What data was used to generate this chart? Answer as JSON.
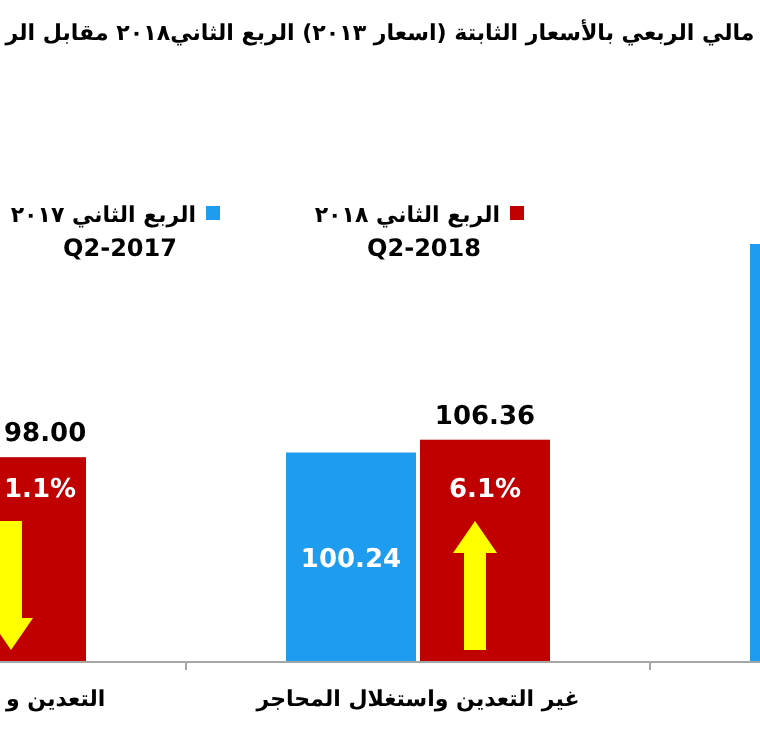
{
  "chart_data": {
    "type": "bar",
    "title": "مالي الربعي بالأسعار الثابتة (اسعار ٢٠١٣) الربع الثاني٢٠١٨ مقابل الر",
    "categories": [
      "التعدين و",
      "غير التعدين واستغلال المحاجر",
      null
    ],
    "series": [
      {
        "name": "الربع الثاني ٢٠١٧ Q2-2017",
        "color": "#1e9cf0",
        "values": [
          null,
          100.24,
          200
        ],
        "value_labels": [
          null,
          "100.24",
          null
        ]
      },
      {
        "name": "الربع الثاني ٢٠١٨ Q2-2018",
        "color": "#c00000",
        "values": [
          98.0,
          106.36,
          null
        ],
        "value_labels": [
          "98.00",
          "106.36",
          null
        ]
      }
    ],
    "annotations": [
      "1.1%",
      "6.1%"
    ],
    "legend": "top"
  }
}
